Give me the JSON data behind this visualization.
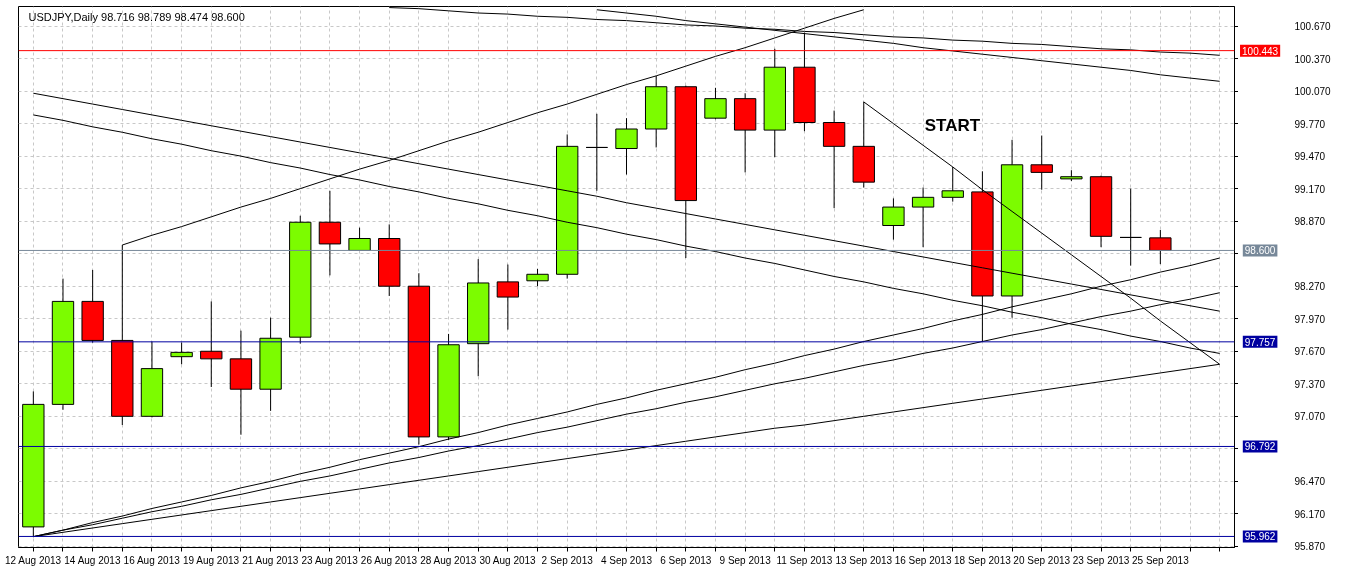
{
  "chart_data": {
    "type": "candlestick",
    "title": "USDJPY,Daily 98.716 98.789 98.474 98.600",
    "categories": [
      "12 Aug 2013",
      null,
      "14 Aug 2013",
      null,
      "16 Aug 2013",
      null,
      "19 Aug 2013",
      null,
      "21 Aug 2013",
      null,
      "23 Aug 2013",
      null,
      "26 Aug 2013",
      null,
      "28 Aug 2013",
      null,
      "30 Aug 2013",
      null,
      "2 Sep 2013",
      null,
      "4 Sep 2013",
      null,
      "6 Sep 2013",
      null,
      "9 Sep 2013",
      null,
      "11 Sep 2013",
      null,
      "13 Sep 2013",
      null,
      "16 Sep 2013",
      null,
      "18 Sep 2013",
      null,
      "20 Sep 2013",
      null,
      "23 Sep 2013",
      null,
      "25 Sep 2013",
      null,
      null
    ],
    "ohlc": [
      [
        96.05,
        97.3,
        95.96,
        97.18
      ],
      [
        97.18,
        98.34,
        97.13,
        98.13
      ],
      [
        98.13,
        98.42,
        97.75,
        97.77
      ],
      [
        97.77,
        98.65,
        96.99,
        97.07
      ],
      [
        97.07,
        97.76,
        97.06,
        97.51
      ],
      [
        97.62,
        97.75,
        97.55,
        97.66
      ],
      [
        97.67,
        98.13,
        97.34,
        97.6
      ],
      [
        97.6,
        97.86,
        96.9,
        97.32
      ],
      [
        97.32,
        97.98,
        97.12,
        97.79
      ],
      [
        97.8,
        98.92,
        97.74,
        98.86
      ],
      [
        98.86,
        99.15,
        98.37,
        98.66
      ],
      [
        98.6,
        98.81,
        98.6,
        98.71
      ],
      [
        98.71,
        98.84,
        98.18,
        98.27
      ],
      [
        98.27,
        98.39,
        96.81,
        96.88
      ],
      [
        96.88,
        97.83,
        96.85,
        97.73
      ],
      [
        97.74,
        98.52,
        97.44,
        98.3
      ],
      [
        98.31,
        98.47,
        97.87,
        98.17
      ],
      [
        98.32,
        98.43,
        98.27,
        98.38
      ],
      [
        98.38,
        99.67,
        98.34,
        99.56
      ],
      [
        99.55,
        99.86,
        99.15,
        99.55
      ],
      [
        99.54,
        99.82,
        99.3,
        99.72
      ],
      [
        99.72,
        100.21,
        99.55,
        100.11
      ],
      [
        100.11,
        100.12,
        98.53,
        99.06
      ],
      [
        99.82,
        100.1,
        99.81,
        100.0
      ],
      [
        100.0,
        100.05,
        99.32,
        99.71
      ],
      [
        99.71,
        100.46,
        99.46,
        100.29
      ],
      [
        100.29,
        100.61,
        99.7,
        99.78
      ],
      [
        99.78,
        99.89,
        98.99,
        99.56
      ],
      [
        99.56,
        99.97,
        99.18,
        99.23
      ],
      [
        98.83,
        99.08,
        98.7,
        99.0
      ],
      [
        99.0,
        99.18,
        98.63,
        99.09
      ],
      [
        99.09,
        99.37,
        99.05,
        99.15
      ],
      [
        99.14,
        99.33,
        97.76,
        98.18
      ],
      [
        98.18,
        99.62,
        97.98,
        99.39
      ],
      [
        99.39,
        99.66,
        99.16,
        99.32
      ],
      [
        99.26,
        99.34,
        99.24,
        99.28
      ],
      [
        99.28,
        99.29,
        98.63,
        98.73
      ],
      [
        98.72,
        99.17,
        98.46,
        98.72
      ],
      [
        98.716,
        98.789,
        98.474,
        98.6
      ],
      null,
      null
    ],
    "colors": [
      "#7cfc00",
      "#7cfc00",
      "#ff0000",
      "#ff0000",
      "#7cfc00",
      "#7cfc00",
      "#ff0000",
      "#ff0000",
      "#7cfc00",
      "#7cfc00",
      "#ff0000",
      "#7cfc00",
      "#ff0000",
      "#ff0000",
      "#7cfc00",
      "#7cfc00",
      "#ff0000",
      "#7cfc00",
      "#7cfc00",
      "#000000",
      "#7cfc00",
      "#7cfc00",
      "#ff0000",
      "#7cfc00",
      "#ff0000",
      "#7cfc00",
      "#ff0000",
      "#ff0000",
      "#ff0000",
      "#7cfc00",
      "#7cfc00",
      "#7cfc00",
      "#ff0000",
      "#7cfc00",
      "#ff0000",
      "#7cfc00",
      "#ff0000",
      "#000000",
      "#ff0000",
      null,
      null
    ],
    "series": [
      {
        "type": "line",
        "color": "#000000",
        "values": [
          null,
          null,
          null,
          null,
          null,
          null,
          null,
          null,
          null,
          null,
          null,
          null,
          100.84,
          100.83,
          100.81,
          100.79,
          100.78,
          100.76,
          100.75,
          100.73,
          100.72,
          100.7,
          100.68,
          100.67,
          100.65,
          100.64,
          100.62,
          100.61,
          100.59,
          100.57,
          100.56,
          100.54,
          100.53,
          100.51,
          100.5,
          100.48,
          100.46,
          100.45,
          100.43,
          100.42,
          100.4
        ]
      },
      {
        "type": "line",
        "color": "#000000",
        "values": [
          null,
          null,
          null,
          null,
          null,
          null,
          null,
          null,
          null,
          null,
          null,
          null,
          null,
          null,
          null,
          null,
          null,
          null,
          null,
          100.82,
          100.79,
          100.76,
          100.72,
          100.69,
          100.66,
          100.63,
          100.6,
          100.57,
          100.54,
          100.51,
          100.47,
          100.44,
          100.41,
          100.38,
          100.35,
          100.32,
          100.29,
          100.26,
          100.22,
          100.19,
          100.16
        ]
      },
      {
        "type": "line",
        "color": "#000000",
        "values": [
          null,
          null,
          null,
          98.65,
          98.74,
          98.82,
          98.91,
          99.0,
          99.08,
          99.17,
          99.26,
          99.35,
          99.43,
          99.52,
          99.61,
          99.69,
          99.78,
          99.87,
          99.95,
          100.04,
          100.13,
          100.21,
          100.3,
          100.39,
          100.47,
          100.56,
          100.65,
          100.74,
          100.82,
          null,
          null,
          null,
          null,
          null,
          null,
          null,
          null,
          null,
          null,
          null,
          null
        ]
      },
      {
        "type": "line",
        "color": "#000000",
        "values": [
          100.05,
          100.0,
          99.95,
          99.9,
          99.85,
          99.8,
          99.75,
          99.7,
          99.65,
          99.6,
          99.55,
          99.5,
          99.45,
          99.4,
          99.35,
          99.3,
          99.25,
          99.2,
          99.15,
          99.1,
          99.04,
          98.99,
          98.94,
          98.89,
          98.84,
          98.79,
          98.74,
          98.69,
          98.64,
          98.59,
          98.54,
          98.49,
          98.44,
          98.39,
          98.34,
          98.29,
          98.24,
          98.19,
          98.14,
          98.09,
          98.04
        ]
      },
      {
        "type": "line",
        "color": "#000000",
        "values": [
          99.85,
          99.8,
          99.74,
          99.69,
          99.63,
          99.58,
          99.52,
          99.47,
          99.41,
          99.36,
          99.3,
          99.25,
          99.19,
          99.14,
          99.08,
          99.03,
          98.97,
          98.92,
          98.86,
          98.81,
          98.75,
          98.7,
          98.64,
          98.59,
          98.53,
          98.48,
          98.42,
          98.36,
          98.31,
          98.25,
          98.2,
          98.14,
          98.09,
          98.03,
          97.98,
          97.92,
          97.87,
          97.81,
          97.76,
          97.7,
          97.65
        ]
      },
      {
        "type": "line",
        "color": "#000000",
        "values": [
          null,
          null,
          null,
          null,
          null,
          null,
          null,
          null,
          null,
          null,
          null,
          null,
          null,
          null,
          null,
          null,
          null,
          null,
          null,
          null,
          null,
          null,
          null,
          null,
          null,
          null,
          null,
          null,
          99.97,
          99.77,
          99.57,
          99.37,
          99.16,
          98.96,
          98.76,
          98.56,
          98.36,
          98.16,
          97.95,
          97.75,
          97.55
        ]
      },
      {
        "type": "line",
        "color": "#000000",
        "values": [
          95.96,
          96.02,
          96.09,
          96.15,
          96.22,
          96.28,
          96.34,
          96.41,
          96.47,
          96.54,
          96.6,
          96.67,
          96.73,
          96.79,
          96.86,
          96.92,
          96.99,
          97.05,
          97.11,
          97.18,
          97.24,
          97.31,
          97.37,
          97.43,
          97.5,
          97.56,
          97.63,
          97.69,
          97.76,
          97.82,
          97.88,
          97.95,
          98.01,
          98.08,
          98.14,
          98.2,
          98.27,
          98.33,
          98.4,
          98.46,
          98.53
        ]
      },
      {
        "type": "line",
        "color": "#000000",
        "values": [
          95.96,
          96.02,
          96.07,
          96.13,
          96.19,
          96.24,
          96.3,
          96.35,
          96.41,
          96.47,
          96.52,
          96.58,
          96.64,
          96.69,
          96.75,
          96.8,
          96.86,
          96.92,
          96.97,
          97.03,
          97.09,
          97.14,
          97.2,
          97.25,
          97.31,
          97.37,
          97.42,
          97.48,
          97.54,
          97.59,
          97.65,
          97.7,
          97.76,
          97.82,
          97.87,
          97.93,
          97.99,
          98.04,
          98.1,
          98.15,
          98.21
        ]
      },
      {
        "type": "line",
        "color": "#000000",
        "values": [
          95.96,
          96.0,
          96.04,
          96.08,
          96.12,
          96.16,
          96.2,
          96.24,
          96.28,
          96.32,
          96.36,
          96.4,
          96.44,
          96.48,
          96.52,
          96.56,
          96.6,
          96.64,
          96.68,
          96.72,
          96.76,
          96.8,
          96.84,
          96.88,
          96.92,
          96.96,
          96.99,
          97.03,
          97.07,
          97.11,
          97.15,
          97.19,
          97.23,
          97.27,
          97.31,
          97.35,
          97.39,
          97.43,
          97.47,
          97.51,
          97.55
        ]
      }
    ],
    "ref_lines": [
      {
        "axis": "y",
        "value": 100.443,
        "label": "100.443",
        "color": "#ff0000"
      },
      {
        "axis": "y",
        "value": 98.6,
        "label": "98.600",
        "color": "#778899"
      },
      {
        "axis": "y",
        "value": 97.757,
        "label": "97.757",
        "color": "#0000a0"
      },
      {
        "axis": "y",
        "value": 96.792,
        "label": "96.792",
        "color": "#0000a0"
      },
      {
        "axis": "y",
        "value": 95.962,
        "label": "95.962",
        "color": "#0000a0"
      }
    ],
    "annotations": [
      "START"
    ],
    "ylim": [
      95.86,
      100.85
    ],
    "yticks": [
      {
        "value": 95.87,
        "label": "95.870"
      },
      {
        "value": 96.17,
        "label": "96.170"
      },
      {
        "value": 96.47,
        "label": "96.470"
      },
      {
        "value": 96.77,
        "label": null
      },
      {
        "value": 97.07,
        "label": "97.070"
      },
      {
        "value": 97.37,
        "label": "97.370"
      },
      {
        "value": 97.67,
        "label": "97.670"
      },
      {
        "value": 97.97,
        "label": "97.970"
      },
      {
        "value": 98.27,
        "label": "98.270"
      },
      {
        "value": 98.57,
        "label": null
      },
      {
        "value": 98.87,
        "label": "98.870"
      },
      {
        "value": 99.17,
        "label": "99.170"
      },
      {
        "value": 99.47,
        "label": "99.470"
      },
      {
        "value": 99.77,
        "label": "99.770"
      },
      {
        "value": 100.07,
        "label": "100.070"
      },
      {
        "value": 100.37,
        "label": "100.370"
      },
      {
        "value": 100.67,
        "label": "100.670"
      }
    ],
    "grid": true
  }
}
